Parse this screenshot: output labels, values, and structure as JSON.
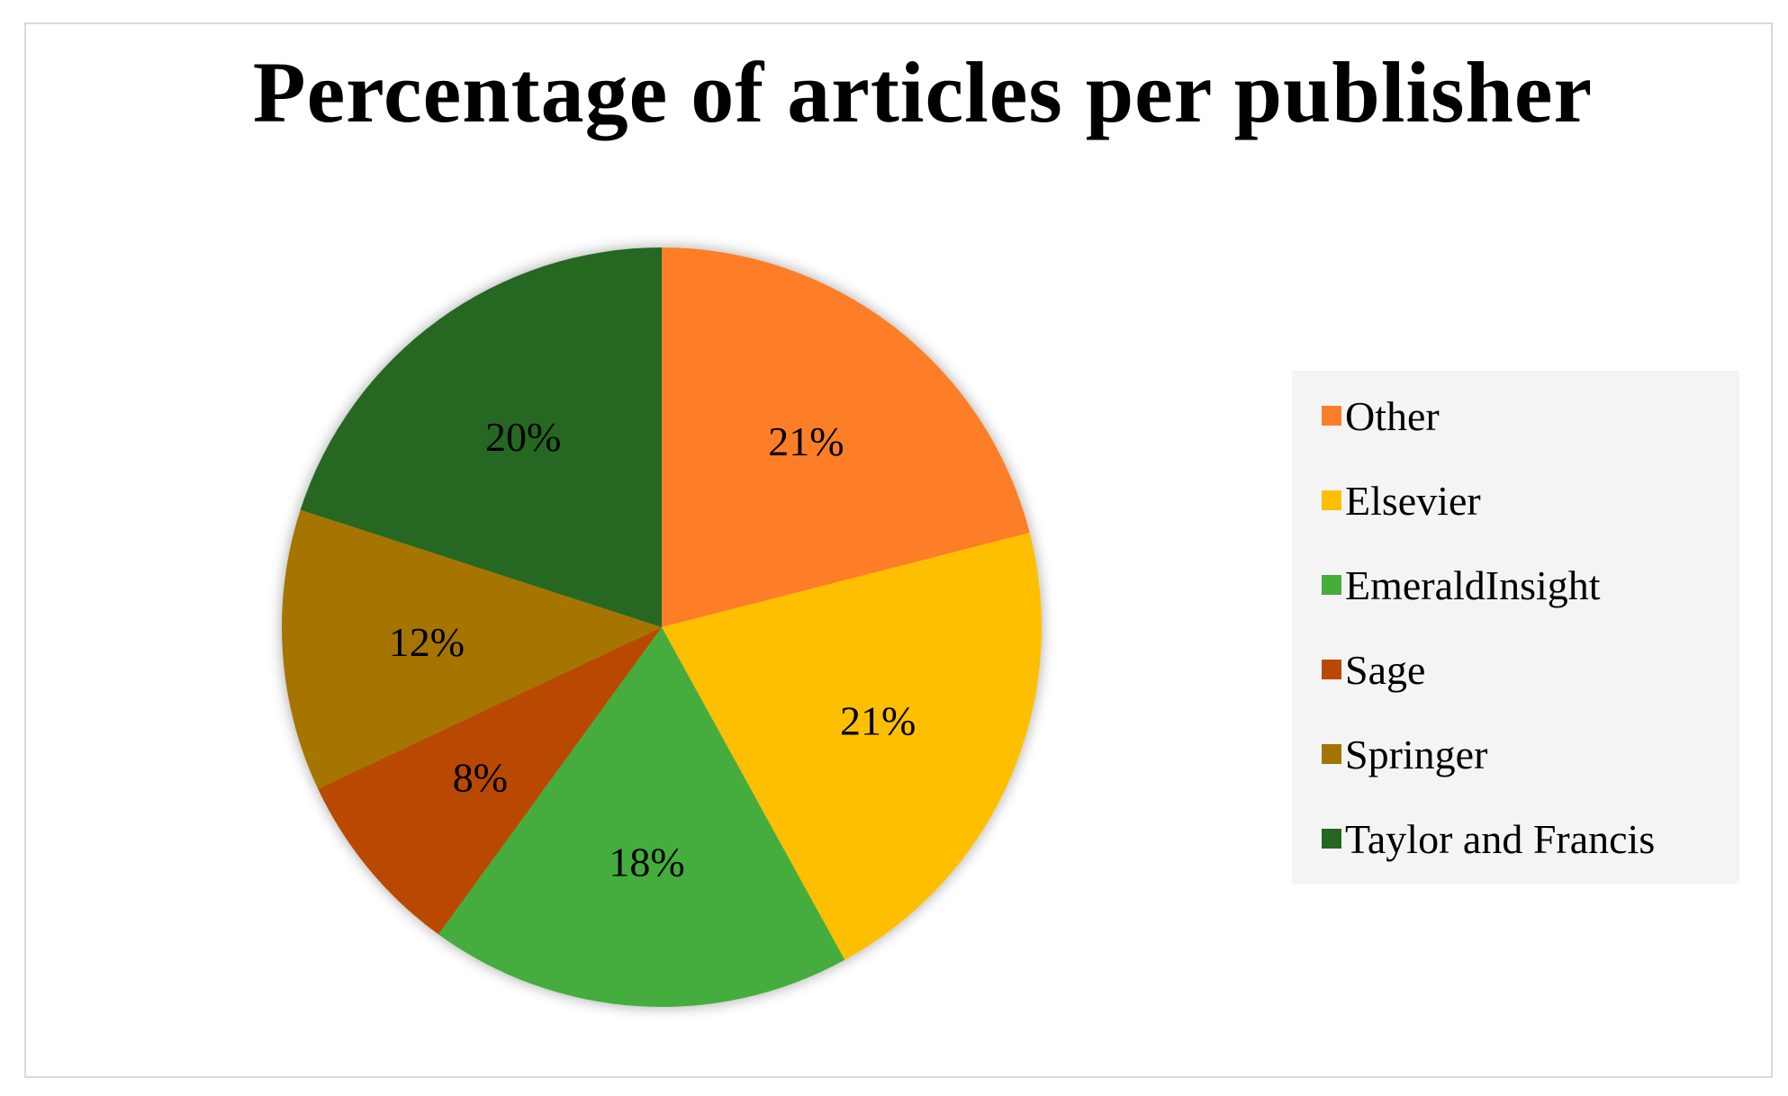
{
  "chart_data": {
    "type": "pie",
    "title": "Percentage of articles per publisher",
    "categories": [
      "Other",
      "Elsevier",
      "EmeraldInsight",
      "Sage",
      "Springer",
      "Taylor and Francis"
    ],
    "values": [
      21,
      21,
      18,
      8,
      12,
      20
    ],
    "labels": [
      "21%",
      "21%",
      "18%",
      "8%",
      "12%",
      "20%"
    ],
    "colors": [
      "#fd7e28",
      "#fdbf00",
      "#44ad3c",
      "#b94800",
      "#a57400",
      "#256720"
    ],
    "start_angle": "12 o'clock",
    "direction": "clockwise",
    "legend_position": "right"
  }
}
